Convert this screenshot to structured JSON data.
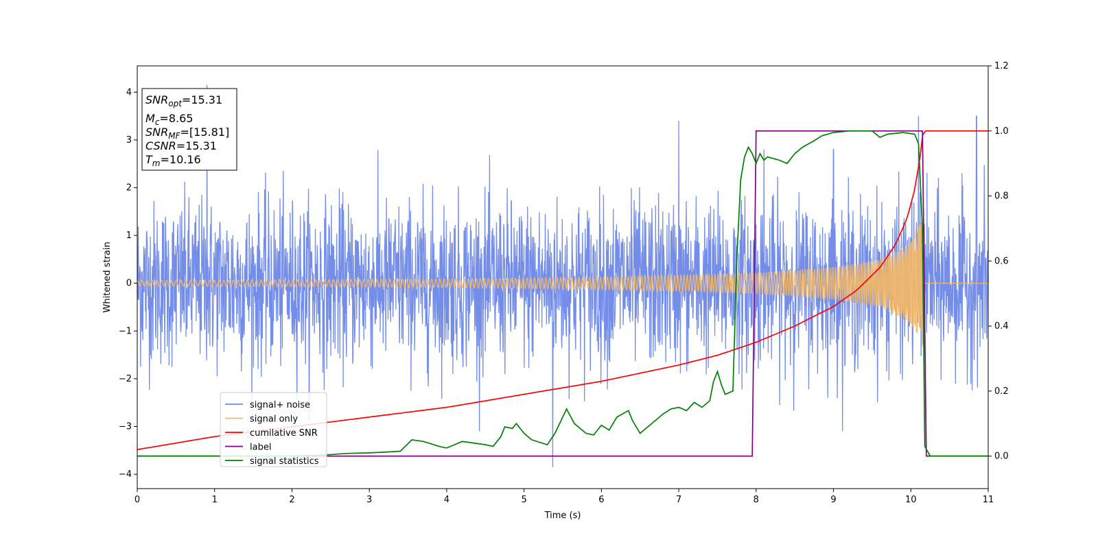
{
  "chart_data": {
    "type": "line",
    "xlabel": "Time (s)",
    "ylabel": "Whitened strain",
    "xlim": [
      0,
      11
    ],
    "ylim": [
      -4.3,
      4.55
    ],
    "y2lim": [
      -0.1,
      1.2
    ],
    "x_ticks": [
      "0",
      "1",
      "2",
      "3",
      "4",
      "5",
      "6",
      "7",
      "8",
      "9",
      "10",
      "11"
    ],
    "y_ticks": [
      "−4",
      "−3",
      "−2",
      "−1",
      "0",
      "1",
      "2",
      "3",
      "4"
    ],
    "y2_ticks": [
      "0.0",
      "0.2",
      "0.4",
      "0.6",
      "0.8",
      "1.0",
      "1.2"
    ],
    "grid": false,
    "legend_position": "lower-left",
    "info_box": {
      "snr_opt": {
        "label": "SNR",
        "sub": "opt",
        "value": "=15.31"
      },
      "mc": {
        "label": "M",
        "sub": "c",
        "value": "=8.65"
      },
      "snr_mf": {
        "label": "SNR",
        "sub": "MF",
        "value": "=[15.81]"
      },
      "csnr": {
        "label": "CSNR",
        "value": "=15.31"
      },
      "tm": {
        "label": "T",
        "sub": "m",
        "value": "=10.16"
      }
    },
    "series": [
      {
        "name": "signal+ noise",
        "axis": "left",
        "color": "#6b87e8",
        "noise_envelope": {
          "typical_amplitude": 1.6,
          "peaks": [
            [
              0.9,
              4.15
            ],
            [
              10.1,
              3.5
            ],
            [
              10.85,
              3.5
            ],
            [
              5.37,
              -3.85
            ],
            [
              7.0,
              3.4
            ],
            [
              8.1,
              2.8
            ],
            [
              9.0,
              2.8
            ]
          ]
        }
      },
      {
        "name": "signal only",
        "axis": "left",
        "color": "#f5b865",
        "chirp": {
          "amp_points": [
            [
              0,
              0.06
            ],
            [
              2,
              0.07
            ],
            [
              4,
              0.09
            ],
            [
              6,
              0.13
            ],
            [
              7,
              0.17
            ],
            [
              8,
              0.22
            ],
            [
              9,
              0.34
            ],
            [
              9.6,
              0.5
            ],
            [
              10.0,
              0.85
            ],
            [
              10.15,
              1.35
            ]
          ],
          "merger_time": 10.16
        }
      },
      {
        "name": "cumilative SNR",
        "axis": "right",
        "color": "#ff0000",
        "points": [
          [
            0,
            0.02
          ],
          [
            1,
            0.06
          ],
          [
            2,
            0.09
          ],
          [
            3,
            0.12
          ],
          [
            4,
            0.15
          ],
          [
            5,
            0.19
          ],
          [
            6,
            0.23
          ],
          [
            7,
            0.28
          ],
          [
            7.5,
            0.31
          ],
          [
            8,
            0.35
          ],
          [
            8.5,
            0.4
          ],
          [
            9,
            0.46
          ],
          [
            9.3,
            0.51
          ],
          [
            9.6,
            0.58
          ],
          [
            9.8,
            0.65
          ],
          [
            9.95,
            0.73
          ],
          [
            10.05,
            0.82
          ],
          [
            10.12,
            0.92
          ],
          [
            10.16,
            1.0
          ],
          [
            11,
            1.0
          ]
        ]
      },
      {
        "name": "label",
        "axis": "right",
        "color": "#800080",
        "points": [
          [
            0,
            0.0
          ],
          [
            7.95,
            0.0
          ],
          [
            8.0,
            1.0
          ],
          [
            10.15,
            1.0
          ],
          [
            10.2,
            0.0
          ],
          [
            11,
            0.0
          ]
        ]
      },
      {
        "name": "signal statistics",
        "axis": "right",
        "color": "#008000",
        "points": [
          [
            0,
            0.0
          ],
          [
            2.0,
            0.0
          ],
          [
            2.4,
            0.003
          ],
          [
            2.7,
            0.008
          ],
          [
            3.0,
            0.01
          ],
          [
            3.2,
            0.012
          ],
          [
            3.4,
            0.015
          ],
          [
            3.55,
            0.05
          ],
          [
            3.7,
            0.045
          ],
          [
            3.9,
            0.03
          ],
          [
            4.0,
            0.025
          ],
          [
            4.2,
            0.045
          ],
          [
            4.5,
            0.035
          ],
          [
            4.6,
            0.03
          ],
          [
            4.7,
            0.06
          ],
          [
            4.75,
            0.09
          ],
          [
            4.85,
            0.085
          ],
          [
            4.9,
            0.1
          ],
          [
            5.0,
            0.07
          ],
          [
            5.1,
            0.05
          ],
          [
            5.3,
            0.035
          ],
          [
            5.4,
            0.07
          ],
          [
            5.5,
            0.12
          ],
          [
            5.55,
            0.145
          ],
          [
            5.65,
            0.1
          ],
          [
            5.8,
            0.07
          ],
          [
            5.9,
            0.065
          ],
          [
            6.0,
            0.095
          ],
          [
            6.1,
            0.08
          ],
          [
            6.2,
            0.12
          ],
          [
            6.35,
            0.14
          ],
          [
            6.4,
            0.11
          ],
          [
            6.5,
            0.07
          ],
          [
            6.6,
            0.09
          ],
          [
            6.7,
            0.11
          ],
          [
            6.8,
            0.13
          ],
          [
            6.9,
            0.145
          ],
          [
            7.0,
            0.15
          ],
          [
            7.1,
            0.14
          ],
          [
            7.2,
            0.165
          ],
          [
            7.3,
            0.15
          ],
          [
            7.4,
            0.17
          ],
          [
            7.45,
            0.23
          ],
          [
            7.5,
            0.26
          ],
          [
            7.55,
            0.22
          ],
          [
            7.6,
            0.19
          ],
          [
            7.7,
            0.2
          ],
          [
            7.75,
            0.6
          ],
          [
            7.8,
            0.85
          ],
          [
            7.85,
            0.92
          ],
          [
            7.9,
            0.95
          ],
          [
            7.95,
            0.93
          ],
          [
            8.0,
            0.9
          ],
          [
            8.05,
            0.93
          ],
          [
            8.1,
            0.91
          ],
          [
            8.15,
            0.92
          ],
          [
            8.3,
            0.91
          ],
          [
            8.4,
            0.9
          ],
          [
            8.5,
            0.93
          ],
          [
            8.6,
            0.95
          ],
          [
            8.75,
            0.97
          ],
          [
            8.85,
            0.985
          ],
          [
            9.0,
            0.995
          ],
          [
            9.2,
            1.0
          ],
          [
            9.5,
            1.0
          ],
          [
            9.6,
            0.98
          ],
          [
            9.7,
            0.99
          ],
          [
            9.9,
            0.995
          ],
          [
            10.05,
            0.99
          ],
          [
            10.1,
            0.96
          ],
          [
            10.15,
            0.7
          ],
          [
            10.18,
            0.03
          ],
          [
            10.25,
            0.0
          ],
          [
            11,
            0.0
          ]
        ]
      }
    ]
  }
}
